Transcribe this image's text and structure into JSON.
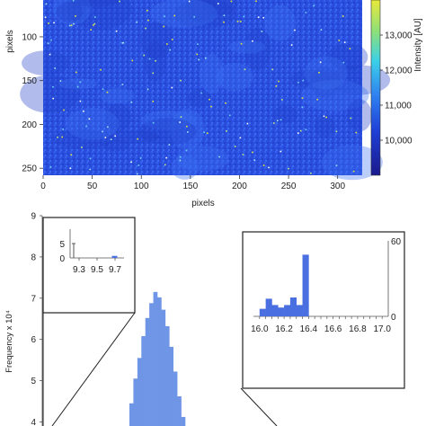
{
  "chart_data": [
    {
      "type": "heatmap",
      "xlabel": "pixels",
      "ylabel": "pixels",
      "xlim": [
        0,
        325
      ],
      "ylim": [
        0,
        258
      ],
      "x_ticks": [
        "0",
        "50",
        "100",
        "150",
        "200",
        "250",
        "300"
      ],
      "y_ticks": [
        "100",
        "150",
        "200",
        "250"
      ],
      "colorbar": {
        "label": "Intensity [AU]",
        "range": [
          9000,
          14000
        ],
        "ticks": [
          "10,000",
          "11,000",
          "12,000",
          "13,000"
        ],
        "colors": [
          "#1a1a8c",
          "#1f3fd6",
          "#2f7ff0",
          "#3bd0e8",
          "#8de07a",
          "#e8e83a"
        ]
      },
      "dominant_value": 10600
    },
    {
      "type": "bar",
      "name": "histogram",
      "ylabel": "Frequency x 10⁴",
      "y_ticks": [
        "4",
        "5",
        "6",
        "7",
        "8",
        "9"
      ],
      "ylim": [
        3.9,
        9.0
      ],
      "bar_color": "#6f95e6",
      "series": [
        {
          "values": [
            4.45,
            5.05,
            5.55,
            6.08,
            6.52,
            6.88,
            7.15,
            7.02,
            6.72,
            6.32,
            5.82,
            5.22,
            4.62,
            4.12
          ]
        }
      ]
    },
    {
      "type": "bar",
      "name": "low-inset",
      "x_ticks": [
        "9.3",
        "9.5",
        "9.7"
      ],
      "xlim": [
        9.2,
        9.8
      ],
      "y_ticks": [
        "5",
        "0"
      ],
      "ylim": [
        0,
        10
      ],
      "series": [
        {
          "x": [
            9.24,
            9.69
          ],
          "values": [
            5,
            0.4
          ]
        }
      ]
    },
    {
      "type": "bar",
      "name": "high-inset",
      "x_ticks": [
        "16.0",
        "16.2",
        "16.4",
        "16.6",
        "16.8",
        "17.0"
      ],
      "xlim": [
        15.95,
        17.05
      ],
      "y_ticks": [
        "60",
        "0"
      ],
      "ylim": [
        0,
        60
      ],
      "bar_color": "#4a6fe0",
      "series": [
        {
          "x": [
            16.0,
            16.05,
            16.1,
            16.15,
            16.2,
            16.25,
            16.3,
            16.35
          ],
          "values": [
            6,
            14,
            9,
            7,
            9,
            15,
            9,
            49
          ]
        }
      ]
    }
  ]
}
